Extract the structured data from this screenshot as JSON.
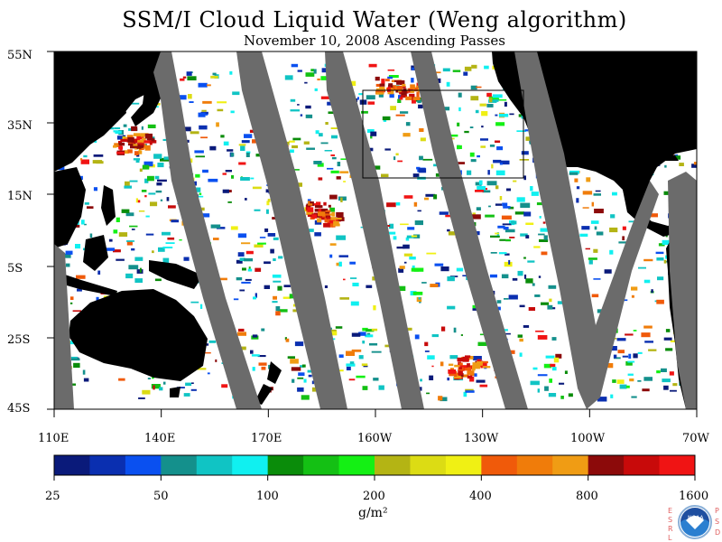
{
  "title": "SSM/I Cloud Liquid Water (Weng algorithm)",
  "subtitle": "November 10, 2008  Ascending Passes",
  "lat_labels": [
    "55N",
    "35N",
    "15N",
    "5S",
    "25S",
    "45S"
  ],
  "lon_labels": [
    "110E",
    "140E",
    "170E",
    "160W",
    "130W",
    "100W",
    "70W"
  ],
  "colorbar": {
    "tick_labels": [
      "25",
      "50",
      "100",
      "200",
      "400",
      "800",
      "1600"
    ],
    "units": "g/m²",
    "colors": [
      "#0a1a7a",
      "#0a2fb0",
      "#0a50f0",
      "#14908c",
      "#10c4c4",
      "#10f0f0",
      "#0a8c0a",
      "#14c014",
      "#14f014",
      "#b4b414",
      "#dcdc14",
      "#f0f014",
      "#f05a0a",
      "#f07c0a",
      "#f09c14",
      "#8c0a0a",
      "#c80a0a",
      "#f01414"
    ]
  },
  "map": {
    "land_color": "#000000",
    "no_data_color": "#6b6b6b",
    "region_box_color": "#000000"
  },
  "logo": {
    "left_letters": "ESRL",
    "right_letters": "PSD",
    "center": "NOAA"
  }
}
